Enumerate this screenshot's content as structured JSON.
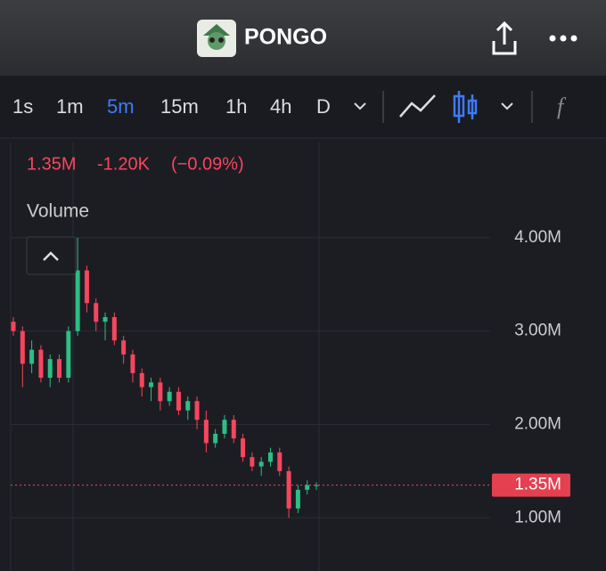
{
  "header": {
    "title": "PONGO"
  },
  "toolbar": {
    "intervals": [
      "1s",
      "1m",
      "5m",
      "15m",
      "1h",
      "4h",
      "D"
    ],
    "active_interval": 2
  },
  "chart_data": {
    "type": "candlestick",
    "legend": {
      "close": "1.35M",
      "change": "-1.20K",
      "change_percent": "(−0.09%)"
    },
    "study": "Volume",
    "up_color": "#2ebd85",
    "down_color": "#f6465d",
    "open": [
      3100000,
      3000000,
      2650000,
      2800000,
      2500000,
      2700000,
      2500000,
      3000000,
      3650000,
      3300000,
      3100000,
      3150000,
      2900000,
      2750000,
      2550000,
      2400000,
      2450000,
      2250000,
      2350000,
      2150000,
      2250000,
      2050000,
      1800000,
      1900000,
      2050000,
      1850000,
      1650000,
      1550000,
      1600000,
      1700000,
      1500000,
      1100000,
      1300000,
      1350000
    ],
    "high": [
      3150000,
      3050000,
      2900000,
      2850000,
      2750000,
      2750000,
      3050000,
      4000000,
      3700000,
      3350000,
      3200000,
      3200000,
      2950000,
      2800000,
      2600000,
      2500000,
      2500000,
      2400000,
      2400000,
      2300000,
      2300000,
      2150000,
      1950000,
      2100000,
      2100000,
      1900000,
      1700000,
      1650000,
      1750000,
      1750000,
      1550000,
      1350000,
      1400000,
      1380000
    ],
    "low": [
      2950000,
      2400000,
      2550000,
      2450000,
      2400000,
      2450000,
      2450000,
      2950000,
      3200000,
      3000000,
      2900000,
      2850000,
      2650000,
      2450000,
      2300000,
      2250000,
      2150000,
      2200000,
      2100000,
      2050000,
      1950000,
      1700000,
      1750000,
      1850000,
      1800000,
      1600000,
      1500000,
      1450000,
      1550000,
      1450000,
      1000000,
      1050000,
      1250000,
      1300000
    ],
    "close": [
      3000000,
      2650000,
      2800000,
      2500000,
      2700000,
      2500000,
      3000000,
      3650000,
      3300000,
      3100000,
      3150000,
      2900000,
      2750000,
      2550000,
      2400000,
      2450000,
      2250000,
      2350000,
      2150000,
      2250000,
      2050000,
      1800000,
      1900000,
      2050000,
      1850000,
      1650000,
      1550000,
      1600000,
      1700000,
      1500000,
      1100000,
      1300000,
      1350000,
      1350000
    ],
    "ylim": [
      430000,
      5020000
    ],
    "yticks": [
      {
        "value": 1000000,
        "label": "1.00M"
      },
      {
        "value": 2000000,
        "label": "2.00M"
      },
      {
        "value": 3000000,
        "label": "3.00M"
      },
      {
        "value": 4000000,
        "label": "4.00M"
      }
    ],
    "grid": true,
    "current_price": {
      "value": 1350000,
      "label": "1.35M"
    }
  }
}
